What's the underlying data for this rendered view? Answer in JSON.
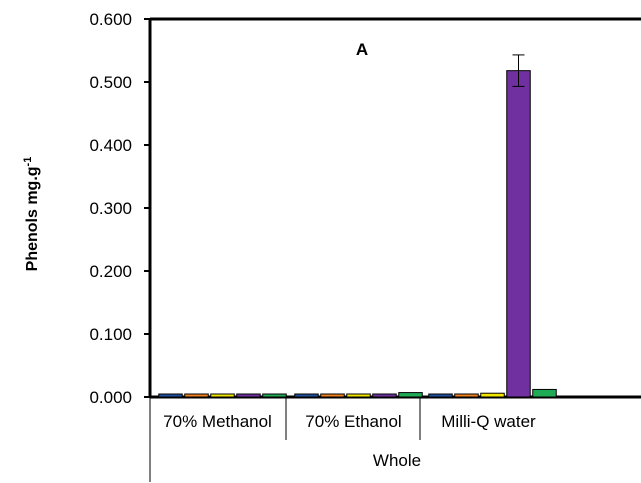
{
  "chart_data": {
    "type": "bar",
    "panel_label": "A",
    "ylabel": "Phenols mg.g",
    "ylabel_superscript": "-1",
    "ylim": [
      0,
      0.6
    ],
    "yticks": [
      "0.000",
      "0.100",
      "0.200",
      "0.300",
      "0.400",
      "0.500",
      "0.600"
    ],
    "grid": false,
    "group_label": "Whole",
    "categories": [
      "70% Methanol",
      "70% Ethanol",
      "Milli-Q water"
    ],
    "series": [
      {
        "color": "#1f4e9c",
        "values": [
          0.0005,
          0.0015,
          0.002
        ]
      },
      {
        "color": "#f07f1e",
        "values": [
          0.0005,
          0.0005,
          0.001
        ]
      },
      {
        "color": "#f2e600",
        "values": [
          0.0005,
          0.0005,
          0.006
        ]
      },
      {
        "color": "#7030a0",
        "values": [
          0.0005,
          0.0005,
          0.518
        ],
        "errors": [
          0,
          0,
          0.025
        ]
      },
      {
        "color": "#1faa55",
        "values": [
          0.004,
          0.007,
          0.012
        ]
      }
    ]
  }
}
